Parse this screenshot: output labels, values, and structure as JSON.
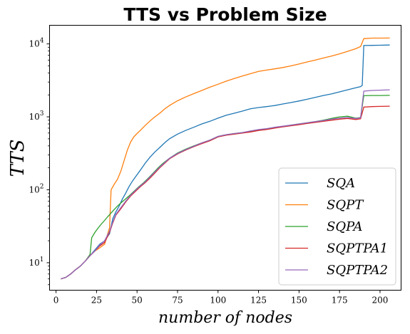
{
  "chart_data": {
    "type": "line",
    "title": "TTS vs Problem Size",
    "xlabel": "number of nodes",
    "ylabel": "TTS",
    "xlim": [
      -4,
      213
    ],
    "ylim": [
      4.2,
      18000
    ],
    "yscale": "log",
    "grid": false,
    "legend_position": "lower-right",
    "xticks": [
      0,
      25,
      50,
      75,
      100,
      125,
      150,
      175,
      200
    ],
    "yticks": [
      {
        "value": 10,
        "base": "10",
        "exp": "1"
      },
      {
        "value": 100,
        "base": "10",
        "exp": "2"
      },
      {
        "value": 1000,
        "base": "10",
        "exp": "3"
      },
      {
        "value": 10000,
        "base": "10",
        "exp": "4"
      }
    ],
    "series": [
      {
        "name": "SQA",
        "color": "#1f77b4",
        "points": [
          [
            3,
            6
          ],
          [
            6,
            6.3
          ],
          [
            9,
            7
          ],
          [
            12,
            8
          ],
          [
            15,
            9
          ],
          [
            18,
            10.5
          ],
          [
            21,
            12.5
          ],
          [
            24,
            15
          ],
          [
            27,
            18
          ],
          [
            30,
            20
          ],
          [
            33,
            25
          ],
          [
            35,
            40
          ],
          [
            37,
            50
          ],
          [
            39,
            60
          ],
          [
            41,
            75
          ],
          [
            43,
            90
          ],
          [
            45,
            110
          ],
          [
            47,
            130
          ],
          [
            49,
            150
          ],
          [
            52,
            185
          ],
          [
            55,
            230
          ],
          [
            58,
            280
          ],
          [
            61,
            330
          ],
          [
            64,
            380
          ],
          [
            67,
            440
          ],
          [
            70,
            500
          ],
          [
            75,
            580
          ],
          [
            80,
            650
          ],
          [
            85,
            720
          ],
          [
            90,
            800
          ],
          [
            95,
            870
          ],
          [
            100,
            960
          ],
          [
            105,
            1050
          ],
          [
            110,
            1120
          ],
          [
            115,
            1200
          ],
          [
            120,
            1290
          ],
          [
            125,
            1340
          ],
          [
            130,
            1380
          ],
          [
            135,
            1430
          ],
          [
            140,
            1500
          ],
          [
            145,
            1570
          ],
          [
            150,
            1650
          ],
          [
            155,
            1740
          ],
          [
            160,
            1850
          ],
          [
            165,
            1960
          ],
          [
            170,
            2060
          ],
          [
            175,
            2200
          ],
          [
            180,
            2350
          ],
          [
            185,
            2500
          ],
          [
            188,
            2600
          ],
          [
            189,
            2700
          ],
          [
            190,
            9500
          ],
          [
            195,
            9550
          ],
          [
            200,
            9600
          ],
          [
            206,
            9650
          ]
        ]
      },
      {
        "name": "SQPT",
        "color": "#ff7f0e",
        "points": [
          [
            3,
            6
          ],
          [
            6,
            6.3
          ],
          [
            9,
            7
          ],
          [
            12,
            8
          ],
          [
            15,
            9
          ],
          [
            18,
            10.5
          ],
          [
            21,
            12.5
          ],
          [
            24,
            14.5
          ],
          [
            27,
            16
          ],
          [
            30,
            18
          ],
          [
            33,
            30
          ],
          [
            34,
            100
          ],
          [
            36,
            120
          ],
          [
            38,
            140
          ],
          [
            40,
            180
          ],
          [
            42,
            250
          ],
          [
            44,
            350
          ],
          [
            46,
            450
          ],
          [
            48,
            530
          ],
          [
            50,
            590
          ],
          [
            52,
            650
          ],
          [
            55,
            760
          ],
          [
            58,
            880
          ],
          [
            61,
            1000
          ],
          [
            64,
            1120
          ],
          [
            67,
            1280
          ],
          [
            70,
            1430
          ],
          [
            75,
            1660
          ],
          [
            80,
            1870
          ],
          [
            85,
            2080
          ],
          [
            90,
            2300
          ],
          [
            95,
            2550
          ],
          [
            100,
            2800
          ],
          [
            105,
            3080
          ],
          [
            110,
            3350
          ],
          [
            115,
            3620
          ],
          [
            120,
            3900
          ],
          [
            125,
            4200
          ],
          [
            130,
            4380
          ],
          [
            135,
            4550
          ],
          [
            140,
            4750
          ],
          [
            145,
            5000
          ],
          [
            150,
            5300
          ],
          [
            155,
            5650
          ],
          [
            160,
            6000
          ],
          [
            165,
            6400
          ],
          [
            170,
            6800
          ],
          [
            175,
            7300
          ],
          [
            180,
            7900
          ],
          [
            185,
            8600
          ],
          [
            188,
            9200
          ],
          [
            190,
            11800
          ],
          [
            195,
            12000
          ],
          [
            200,
            12000
          ],
          [
            206,
            12050
          ]
        ]
      },
      {
        "name": "SQPA",
        "color": "#2ca02c",
        "points": [
          [
            3,
            6
          ],
          [
            6,
            6.3
          ],
          [
            9,
            7
          ],
          [
            12,
            8
          ],
          [
            15,
            9
          ],
          [
            18,
            10.5
          ],
          [
            21,
            13
          ],
          [
            22,
            22
          ],
          [
            24,
            26
          ],
          [
            26,
            30
          ],
          [
            28,
            34
          ],
          [
            30,
            38
          ],
          [
            32,
            43
          ],
          [
            34,
            48
          ],
          [
            36,
            54
          ],
          [
            38,
            60
          ],
          [
            40,
            66
          ],
          [
            42,
            72
          ],
          [
            45,
            82
          ],
          [
            48,
            95
          ],
          [
            51,
            110
          ],
          [
            54,
            125
          ],
          [
            57,
            145
          ],
          [
            60,
            170
          ],
          [
            63,
            200
          ],
          [
            66,
            230
          ],
          [
            70,
            270
          ],
          [
            75,
            320
          ],
          [
            80,
            360
          ],
          [
            85,
            400
          ],
          [
            90,
            440
          ],
          [
            95,
            480
          ],
          [
            100,
            540
          ],
          [
            105,
            570
          ],
          [
            110,
            590
          ],
          [
            115,
            610
          ],
          [
            120,
            630
          ],
          [
            125,
            660
          ],
          [
            130,
            680
          ],
          [
            135,
            710
          ],
          [
            140,
            740
          ],
          [
            145,
            770
          ],
          [
            150,
            800
          ],
          [
            155,
            830
          ],
          [
            160,
            860
          ],
          [
            165,
            900
          ],
          [
            170,
            950
          ],
          [
            175,
            1000
          ],
          [
            180,
            1020
          ],
          [
            185,
            960
          ],
          [
            188,
            980
          ],
          [
            190,
            1950
          ],
          [
            195,
            1960
          ],
          [
            200,
            1960
          ],
          [
            206,
            1970
          ]
        ]
      },
      {
        "name": "SQPTPA1",
        "color": "#d62728",
        "points": [
          [
            3,
            6
          ],
          [
            6,
            6.3
          ],
          [
            9,
            7
          ],
          [
            12,
            8
          ],
          [
            15,
            9
          ],
          [
            18,
            10.5
          ],
          [
            21,
            12.5
          ],
          [
            24,
            14.5
          ],
          [
            27,
            17
          ],
          [
            30,
            19
          ],
          [
            33,
            26
          ],
          [
            35,
            35
          ],
          [
            37,
            45
          ],
          [
            40,
            55
          ],
          [
            43,
            68
          ],
          [
            46,
            82
          ],
          [
            49,
            95
          ],
          [
            52,
            110
          ],
          [
            55,
            125
          ],
          [
            58,
            145
          ],
          [
            61,
            170
          ],
          [
            64,
            200
          ],
          [
            67,
            230
          ],
          [
            70,
            265
          ],
          [
            75,
            310
          ],
          [
            80,
            350
          ],
          [
            85,
            390
          ],
          [
            90,
            430
          ],
          [
            95,
            470
          ],
          [
            100,
            530
          ],
          [
            105,
            560
          ],
          [
            110,
            580
          ],
          [
            115,
            600
          ],
          [
            120,
            620
          ],
          [
            125,
            650
          ],
          [
            130,
            670
          ],
          [
            135,
            700
          ],
          [
            140,
            730
          ],
          [
            145,
            755
          ],
          [
            150,
            780
          ],
          [
            155,
            810
          ],
          [
            160,
            840
          ],
          [
            165,
            870
          ],
          [
            170,
            900
          ],
          [
            175,
            930
          ],
          [
            180,
            950
          ],
          [
            185,
            920
          ],
          [
            188,
            940
          ],
          [
            190,
            1360
          ],
          [
            195,
            1380
          ],
          [
            200,
            1390
          ],
          [
            206,
            1400
          ]
        ]
      },
      {
        "name": "SQPTPA2",
        "color": "#9467bd",
        "points": [
          [
            3,
            6
          ],
          [
            6,
            6.3
          ],
          [
            9,
            7
          ],
          [
            12,
            8
          ],
          [
            15,
            9
          ],
          [
            18,
            10.5
          ],
          [
            21,
            12.5
          ],
          [
            24,
            14.5
          ],
          [
            27,
            17.5
          ],
          [
            30,
            20
          ],
          [
            33,
            27
          ],
          [
            35,
            36
          ],
          [
            37,
            46
          ],
          [
            40,
            57
          ],
          [
            43,
            70
          ],
          [
            46,
            84
          ],
          [
            49,
            98
          ],
          [
            52,
            113
          ],
          [
            55,
            128
          ],
          [
            58,
            150
          ],
          [
            61,
            175
          ],
          [
            64,
            205
          ],
          [
            67,
            235
          ],
          [
            70,
            270
          ],
          [
            75,
            315
          ],
          [
            80,
            355
          ],
          [
            85,
            395
          ],
          [
            90,
            440
          ],
          [
            95,
            480
          ],
          [
            100,
            540
          ],
          [
            105,
            570
          ],
          [
            110,
            590
          ],
          [
            115,
            610
          ],
          [
            120,
            640
          ],
          [
            125,
            670
          ],
          [
            130,
            690
          ],
          [
            135,
            720
          ],
          [
            140,
            745
          ],
          [
            145,
            770
          ],
          [
            150,
            800
          ],
          [
            155,
            830
          ],
          [
            160,
            860
          ],
          [
            165,
            890
          ],
          [
            170,
            930
          ],
          [
            175,
            960
          ],
          [
            180,
            980
          ],
          [
            185,
            950
          ],
          [
            188,
            970
          ],
          [
            190,
            2250
          ],
          [
            195,
            2300
          ],
          [
            200,
            2320
          ],
          [
            206,
            2350
          ]
        ]
      }
    ]
  }
}
